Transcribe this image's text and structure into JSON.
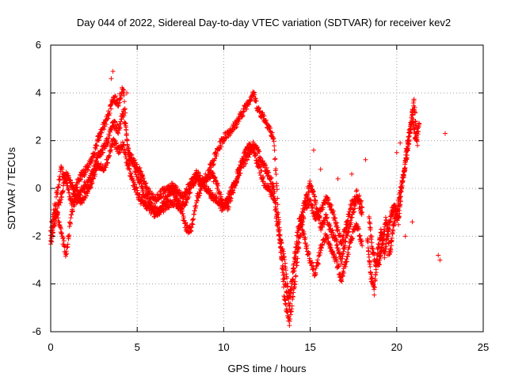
{
  "chart_data": {
    "type": "scatter",
    "title": "Day 044 of 2022, Sidereal Day-to-day VTEC variation (SDTVAR) for receiver kev2",
    "xlabel": "GPS time / hours",
    "ylabel": "SDTVAR / TECUs",
    "xlim": [
      0,
      25
    ],
    "ylim": [
      -6,
      6
    ],
    "xticks": [
      0,
      5,
      10,
      15,
      20,
      25
    ],
    "yticks": [
      -6,
      -4,
      -2,
      0,
      2,
      4,
      6
    ],
    "grid": true,
    "marker": "+",
    "color": "#ff0000",
    "series": [
      {
        "name": "SDTVAR",
        "note": "approximate trajectories traced from the plotted point cloud",
        "tracks": [
          {
            "x": [
              0.0,
              0.3,
              0.6,
              0.9,
              1.2,
              1.5,
              1.8,
              2.1,
              2.4,
              2.7,
              3.0,
              3.3,
              3.6,
              3.9,
              4.2,
              4.5,
              4.8,
              5.1,
              5.4,
              5.7,
              6.0,
              6.3,
              6.6,
              6.9,
              7.2,
              7.5,
              7.8,
              8.1,
              8.4,
              8.7,
              9.0,
              9.3,
              9.6,
              9.9,
              10.2,
              10.5,
              10.8,
              11.1,
              11.4,
              11.7,
              12.0,
              12.3,
              12.6,
              12.9,
              13.2,
              13.5,
              13.8,
              14.1,
              14.4,
              14.7,
              15.0,
              15.3,
              15.6,
              15.9,
              16.2,
              16.5,
              16.8,
              17.1,
              17.4,
              17.7,
              18.0
            ],
            "y": [
              -1.8,
              -0.5,
              0.8,
              0.3,
              -0.6,
              0.2,
              0.6,
              0.8,
              1.2,
              2.0,
              2.5,
              3.0,
              3.8,
              3.6,
              4.2,
              1.2,
              1.0,
              0.4,
              -0.2,
              -0.6,
              -0.9,
              -1.0,
              -0.8,
              -0.6,
              -0.6,
              -0.8,
              -0.5,
              0.0,
              0.4,
              0.2,
              0.5,
              1.0,
              1.5,
              2.0,
              2.3,
              2.5,
              2.8,
              3.2,
              3.6,
              4.0,
              3.3,
              3.0,
              2.6,
              2.0,
              -1.5,
              -4.6,
              -5.6,
              -4.0,
              -2.0,
              -0.8,
              -0.5,
              -1.2,
              -1.0,
              -0.4,
              -0.8,
              -1.5,
              -2.3,
              -1.5,
              -0.6,
              -0.2,
              -0.8
            ]
          },
          {
            "x": [
              0.0,
              0.3,
              0.6,
              0.9,
              1.2,
              1.5,
              1.8,
              2.1,
              2.4,
              2.7,
              3.0,
              3.3,
              3.6,
              3.9,
              4.2,
              4.5,
              4.8,
              5.1,
              5.4,
              5.7,
              6.0,
              6.3,
              6.6,
              6.9,
              7.2,
              7.5,
              7.8,
              8.1,
              8.4,
              8.7,
              9.0,
              9.3,
              9.6,
              9.9,
              10.2,
              10.5,
              10.8,
              11.1,
              11.4,
              11.7,
              12.0,
              12.3,
              12.6,
              12.9,
              13.2,
              13.5,
              13.8,
              14.1,
              14.4,
              14.7,
              15.0,
              15.3,
              15.6,
              15.9,
              16.2,
              16.5,
              16.8,
              17.1,
              17.4,
              17.7,
              18.0
            ],
            "y": [
              -2.4,
              -0.9,
              -1.8,
              -2.8,
              -1.0,
              -0.2,
              -0.6,
              -0.1,
              0.3,
              1.0,
              0.8,
              1.2,
              2.0,
              1.6,
              1.8,
              0.8,
              0.2,
              -0.4,
              -0.6,
              -0.8,
              -1.1,
              -0.9,
              -0.5,
              -0.3,
              -0.2,
              -0.8,
              -1.6,
              -1.8,
              -0.6,
              0.1,
              0.4,
              0.6,
              0.2,
              -0.6,
              -0.8,
              -0.2,
              0.6,
              1.2,
              1.8,
              1.6,
              1.0,
              0.3,
              0.0,
              -0.4,
              -2.0,
              -3.8,
              -5.0,
              -2.8,
              -1.2,
              -2.2,
              -3.0,
              -3.6,
              -2.5,
              -2.0,
              -2.6,
              -3.0,
              -3.8,
              -3.0,
              -2.0,
              -1.5,
              -2.4
            ]
          },
          {
            "x": [
              0.0,
              0.3,
              0.6,
              0.9,
              1.2,
              1.5,
              1.8,
              2.1,
              2.4,
              2.7,
              3.0,
              3.3,
              3.6,
              3.9,
              4.2,
              4.5,
              4.8,
              5.1,
              5.4,
              5.7,
              6.0,
              6.3,
              6.6,
              6.9,
              7.2,
              7.5,
              7.8,
              8.1,
              8.4,
              8.7,
              9.0,
              9.3,
              9.6,
              9.9,
              10.2,
              10.5,
              10.8,
              11.1,
              11.4,
              11.7,
              12.0,
              12.3,
              12.6,
              12.9,
              13.2,
              13.5,
              13.8,
              14.1,
              14.4,
              14.7,
              15.0,
              15.3,
              15.6,
              15.9,
              16.2,
              16.5,
              16.8,
              17.1,
              17.4,
              17.7,
              18.0
            ],
            "y": [
              -2.1,
              -1.2,
              -0.3,
              0.6,
              0.2,
              -0.5,
              0.0,
              0.2,
              0.6,
              1.4,
              1.6,
              2.0,
              2.8,
              2.4,
              3.2,
              1.5,
              1.1,
              0.8,
              0.2,
              -0.2,
              -0.5,
              -0.3,
              0.0,
              0.1,
              0.0,
              -0.3,
              -0.2,
              0.2,
              0.6,
              0.4,
              0.0,
              -0.3,
              -0.5,
              -0.8,
              -0.5,
              0.0,
              0.5,
              1.0,
              1.4,
              1.8,
              1.5,
              1.0,
              0.6,
              0.0,
              -1.8,
              -3.0,
              -4.6,
              -3.2,
              -1.6,
              -0.5,
              0.2,
              -0.6,
              -1.6,
              -1.2,
              -1.8,
              -2.2,
              -3.0,
              -2.0,
              -1.2,
              -0.4,
              -1.0
            ]
          },
          {
            "x": [
              18.3,
              18.5,
              18.7,
              18.9,
              19.1,
              19.3,
              19.5,
              19.7,
              19.9,
              20.1,
              20.3,
              20.5,
              20.7,
              20.9,
              21.1,
              21.3
            ],
            "y": [
              -2.0,
              -3.6,
              -4.3,
              -2.6,
              -1.8,
              -2.8,
              -1.8,
              -1.0,
              -0.8,
              -1.4,
              0.2,
              1.0,
              2.0,
              3.0,
              2.0,
              2.7
            ]
          },
          {
            "x": [
              18.4,
              18.6,
              18.8,
              19.0,
              19.2,
              19.4,
              19.6,
              19.8,
              20.0,
              20.2,
              20.4,
              20.6,
              20.8,
              21.0,
              21.2
            ],
            "y": [
              -1.2,
              -2.6,
              -3.2,
              -3.0,
              -2.2,
              -1.2,
              -2.8,
              -1.6,
              -1.0,
              -0.2,
              0.6,
              1.8,
              2.6,
              3.6,
              1.8
            ]
          }
        ],
        "scatter": {
          "x": [
            3.5,
            3.6,
            4.4,
            15.2,
            15.6,
            16.6,
            17.4,
            18.2,
            19.0,
            19.5,
            20.0,
            20.2,
            20.5,
            20.9,
            22.4,
            22.5,
            22.8
          ],
          "y": [
            4.6,
            4.9,
            4.0,
            1.6,
            0.8,
            0.4,
            0.6,
            1.2,
            -3.2,
            -2.8,
            1.5,
            1.9,
            -2.0,
            -1.4,
            -2.8,
            -3.0,
            2.3
          ]
        }
      }
    ]
  }
}
